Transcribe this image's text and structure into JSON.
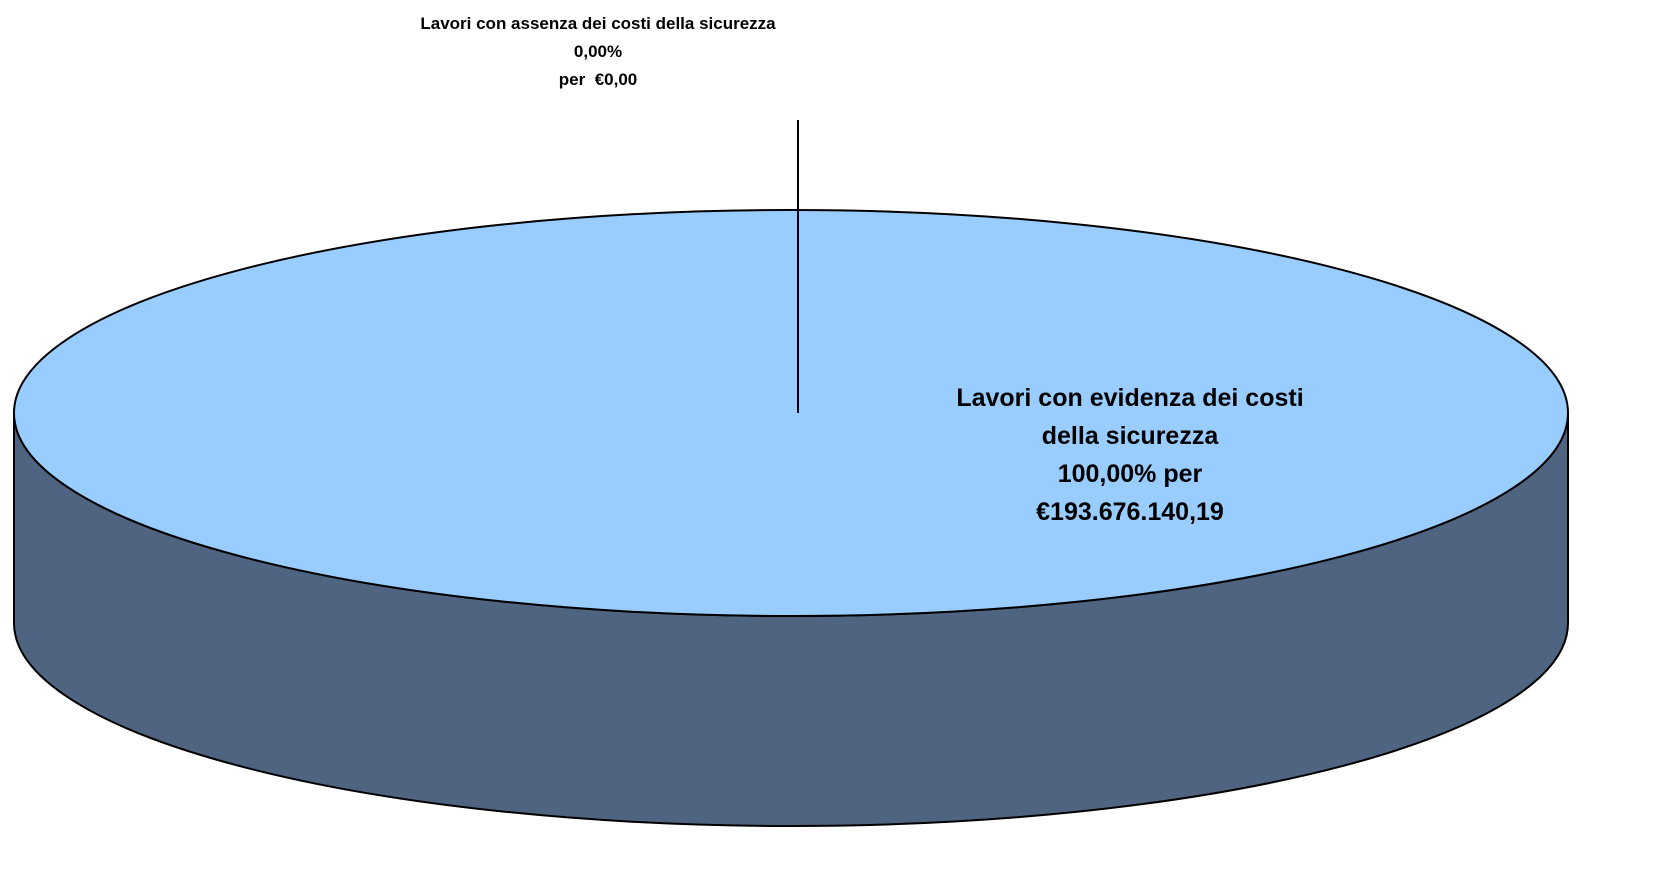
{
  "chart_data": {
    "type": "pie",
    "categories": [
      "Lavori con assenza dei costi della sicurezza",
      "Lavori con evidenza dei costi della sicurezza"
    ],
    "values": [
      0,
      100
    ],
    "value_labels": [
      "0,00%",
      "100,00%"
    ],
    "amount_labels": [
      "€0,00",
      "€193.676.140,19"
    ],
    "amount_prefix": "per",
    "colors": [
      "#99ccff",
      "#99ccff"
    ],
    "side_color": "#4f6480"
  }
}
